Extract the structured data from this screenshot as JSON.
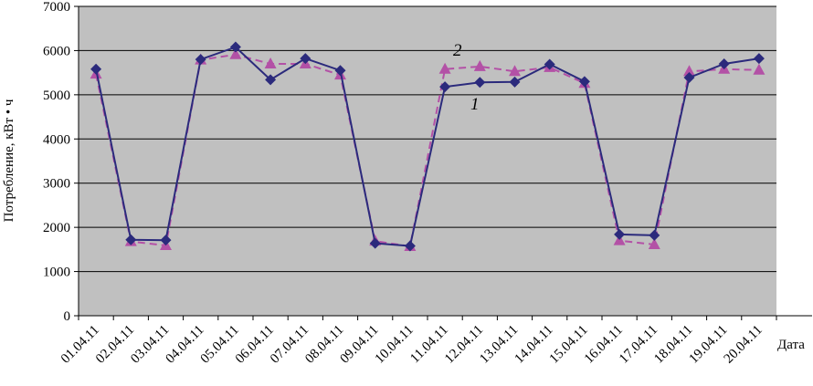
{
  "chart_data": {
    "type": "line",
    "xlabel": "Дата",
    "ylabel": "Потребление, кВт • ч",
    "ylim": [
      0,
      7000
    ],
    "yticks": [
      0,
      1000,
      2000,
      3000,
      4000,
      5000,
      6000,
      7000
    ],
    "grid": true,
    "categories": [
      "01.04.11",
      "02.04.11",
      "03.04.11",
      "04.04.11",
      "05.04.11",
      "06.04.11",
      "07.04.11",
      "08.04.11",
      "09.04.11",
      "10.04.11",
      "11.04.11",
      "12.04.11",
      "13.04.11",
      "14.04.11",
      "15.04.11",
      "16.04.11",
      "17.04.11",
      "18.04.11",
      "19.04.11",
      "20.04.11"
    ],
    "series": [
      {
        "name": "1",
        "color": "#2b2a7c",
        "marker": "diamond",
        "style": "solid",
        "values": [
          5580,
          1720,
          1710,
          5800,
          6080,
          5340,
          5820,
          5550,
          1640,
          1580,
          5180,
          5280,
          5290,
          5690,
          5300,
          1840,
          1820,
          5390,
          5700,
          5820
        ]
      },
      {
        "name": "2",
        "color": "#b351a6",
        "marker": "triangle",
        "style": "dashed",
        "values": [
          5470,
          1680,
          1590,
          5790,
          5910,
          5700,
          5700,
          5450,
          1690,
          1570,
          5580,
          5640,
          5530,
          5620,
          5260,
          1700,
          1610,
          5530,
          5580,
          5560
        ]
      }
    ]
  }
}
